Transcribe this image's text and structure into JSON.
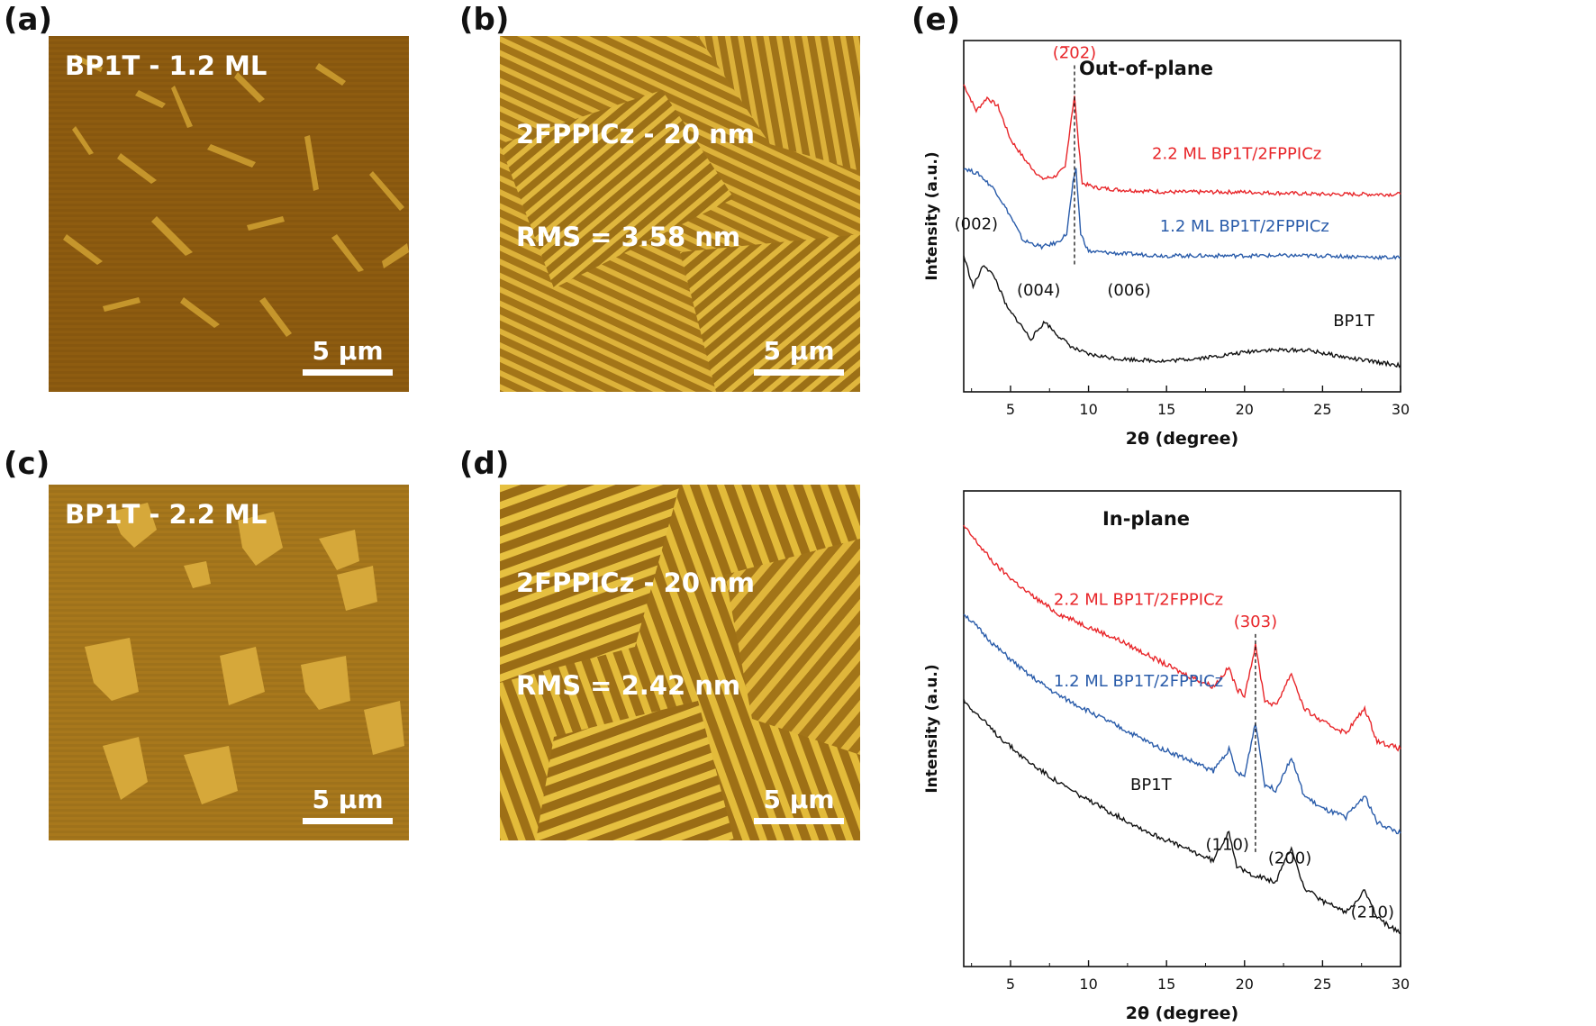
{
  "panels": {
    "a": {
      "tag": "(a)",
      "caption": [
        "BP1T - 1.2 ML"
      ],
      "scale": "5 µm"
    },
    "b": {
      "tag": "(b)",
      "caption": [
        "2FPPICz - 20 nm",
        "RMS = 3.58 nm"
      ],
      "scale": "5 µm"
    },
    "c": {
      "tag": "(c)",
      "caption": [
        "BP1T - 2.2 ML"
      ],
      "scale": "5 µm"
    },
    "d": {
      "tag": "(d)",
      "caption": [
        "2FPPICz - 20 nm",
        "RMS = 2.42 nm"
      ],
      "scale": "5 µm"
    },
    "e": {
      "tag": "(e)"
    }
  },
  "colors": {
    "afm_dark": "#8a5a10",
    "afm_mid": "#a66d14",
    "afm_light": "#d9a83a",
    "fiber": "#e3bb3a",
    "red": "#e8262a",
    "blue": "#2a5caa",
    "black": "#111111"
  },
  "chart_data": [
    {
      "type": "line",
      "title": "Out-of-plane",
      "xlabel": "2θ (degree)",
      "ylabel": "Intensity (a.u.)",
      "xlim": [
        2,
        30
      ],
      "xticks": [
        5,
        10,
        15,
        20,
        25,
        30
      ],
      "series": [
        {
          "name": "2.2 ML BP1T/2FPPICz",
          "color": "#e8262a",
          "x": [
            2,
            2.8,
            3.5,
            4.2,
            5,
            6,
            7,
            7.8,
            8.5,
            8.9,
            9.1,
            9.3,
            9.6,
            10.5,
            12,
            15,
            20,
            25,
            30
          ],
          "y": [
            1.4,
            1.28,
            1.34,
            1.3,
            1.15,
            1.05,
            0.97,
            0.98,
            1.02,
            1.25,
            1.35,
            1.18,
            0.95,
            0.93,
            0.92,
            0.91,
            0.91,
            0.9,
            0.9
          ]
        },
        {
          "name": "1.2 ML BP1T/2FPPICz",
          "color": "#2a5caa",
          "x": [
            2,
            3,
            4,
            5,
            5.8,
            7,
            8,
            8.6,
            9.0,
            9.2,
            9.5,
            10,
            12,
            15,
            20,
            25,
            30
          ],
          "y": [
            1.02,
            0.99,
            0.92,
            0.8,
            0.69,
            0.66,
            0.68,
            0.72,
            0.95,
            1.01,
            0.72,
            0.64,
            0.63,
            0.62,
            0.62,
            0.62,
            0.61
          ]
        },
        {
          "name": "BP1T",
          "color": "#111111",
          "x": [
            2,
            2.6,
            3.3,
            4,
            4.8,
            5.5,
            6.3,
            7.2,
            8,
            9,
            10,
            12,
            15,
            18,
            21,
            24,
            27,
            30
          ],
          "y": [
            0.62,
            0.48,
            0.58,
            0.52,
            0.38,
            0.32,
            0.24,
            0.32,
            0.26,
            0.2,
            0.17,
            0.15,
            0.14,
            0.16,
            0.19,
            0.19,
            0.15,
            0.12
          ]
        }
      ],
      "annotations": [
        {
          "text": "(2̅02)",
          "x": 9.1,
          "color": "#e8262a"
        },
        {
          "text": "(002)",
          "x": 2.8
        },
        {
          "text": "(004)",
          "x": 6.8
        },
        {
          "text": "(006)",
          "x": 12.6
        },
        {
          "text": "BP1T",
          "x": 27
        }
      ]
    },
    {
      "type": "line",
      "title": "In-plane",
      "xlabel": "2θ (degree)",
      "ylabel": "Intensity (a.u.)",
      "xlim": [
        2,
        30
      ],
      "xticks": [
        5,
        10,
        15,
        20,
        25,
        30
      ],
      "series": [
        {
          "name": "2.2 ML BP1T/2FPPICz",
          "color": "#e8262a",
          "x": [
            2,
            4,
            6,
            8,
            10,
            12,
            14,
            16,
            18,
            19,
            19.5,
            20,
            20.7,
            21.3,
            22,
            23,
            23.8,
            25,
            26.5,
            27.7,
            28.5,
            30
          ],
          "y": [
            1.62,
            1.48,
            1.38,
            1.3,
            1.25,
            1.2,
            1.14,
            1.08,
            1.03,
            1.1,
            1.02,
            1.0,
            1.18,
            0.98,
            0.96,
            1.08,
            0.95,
            0.9,
            0.86,
            0.95,
            0.83,
            0.8
          ]
        },
        {
          "name": "1.2 ML BP1T/2FPPICz",
          "color": "#2a5caa",
          "x": [
            2,
            4,
            6,
            8,
            10,
            12,
            14,
            16,
            18,
            19,
            19.5,
            20,
            20.7,
            21.3,
            22,
            23,
            23.8,
            25,
            26.5,
            27.7,
            28.5,
            30
          ],
          "y": [
            1.3,
            1.18,
            1.08,
            1.0,
            0.94,
            0.88,
            0.82,
            0.77,
            0.72,
            0.8,
            0.71,
            0.7,
            0.9,
            0.67,
            0.65,
            0.77,
            0.63,
            0.58,
            0.55,
            0.63,
            0.53,
            0.49
          ]
        },
        {
          "name": "BP1T",
          "color": "#111111",
          "x": [
            2,
            4,
            6,
            8,
            10,
            12,
            14,
            16,
            18,
            19,
            19.5,
            20,
            21,
            22,
            23,
            23.8,
            25,
            26.5,
            27.7,
            28.5,
            30
          ],
          "y": [
            0.98,
            0.86,
            0.76,
            0.68,
            0.61,
            0.55,
            0.49,
            0.44,
            0.39,
            0.5,
            0.37,
            0.35,
            0.33,
            0.31,
            0.44,
            0.29,
            0.24,
            0.2,
            0.28,
            0.18,
            0.12
          ]
        }
      ],
      "annotations": [
        {
          "text": "(303)",
          "x": 20.7,
          "color": "#e8262a"
        },
        {
          "text": "BP1T",
          "x": 14
        },
        {
          "text": "(110)",
          "x": 18.9
        },
        {
          "text": "(200)",
          "x": 22.9
        },
        {
          "text": "(210)",
          "x": 28.2
        }
      ]
    }
  ]
}
